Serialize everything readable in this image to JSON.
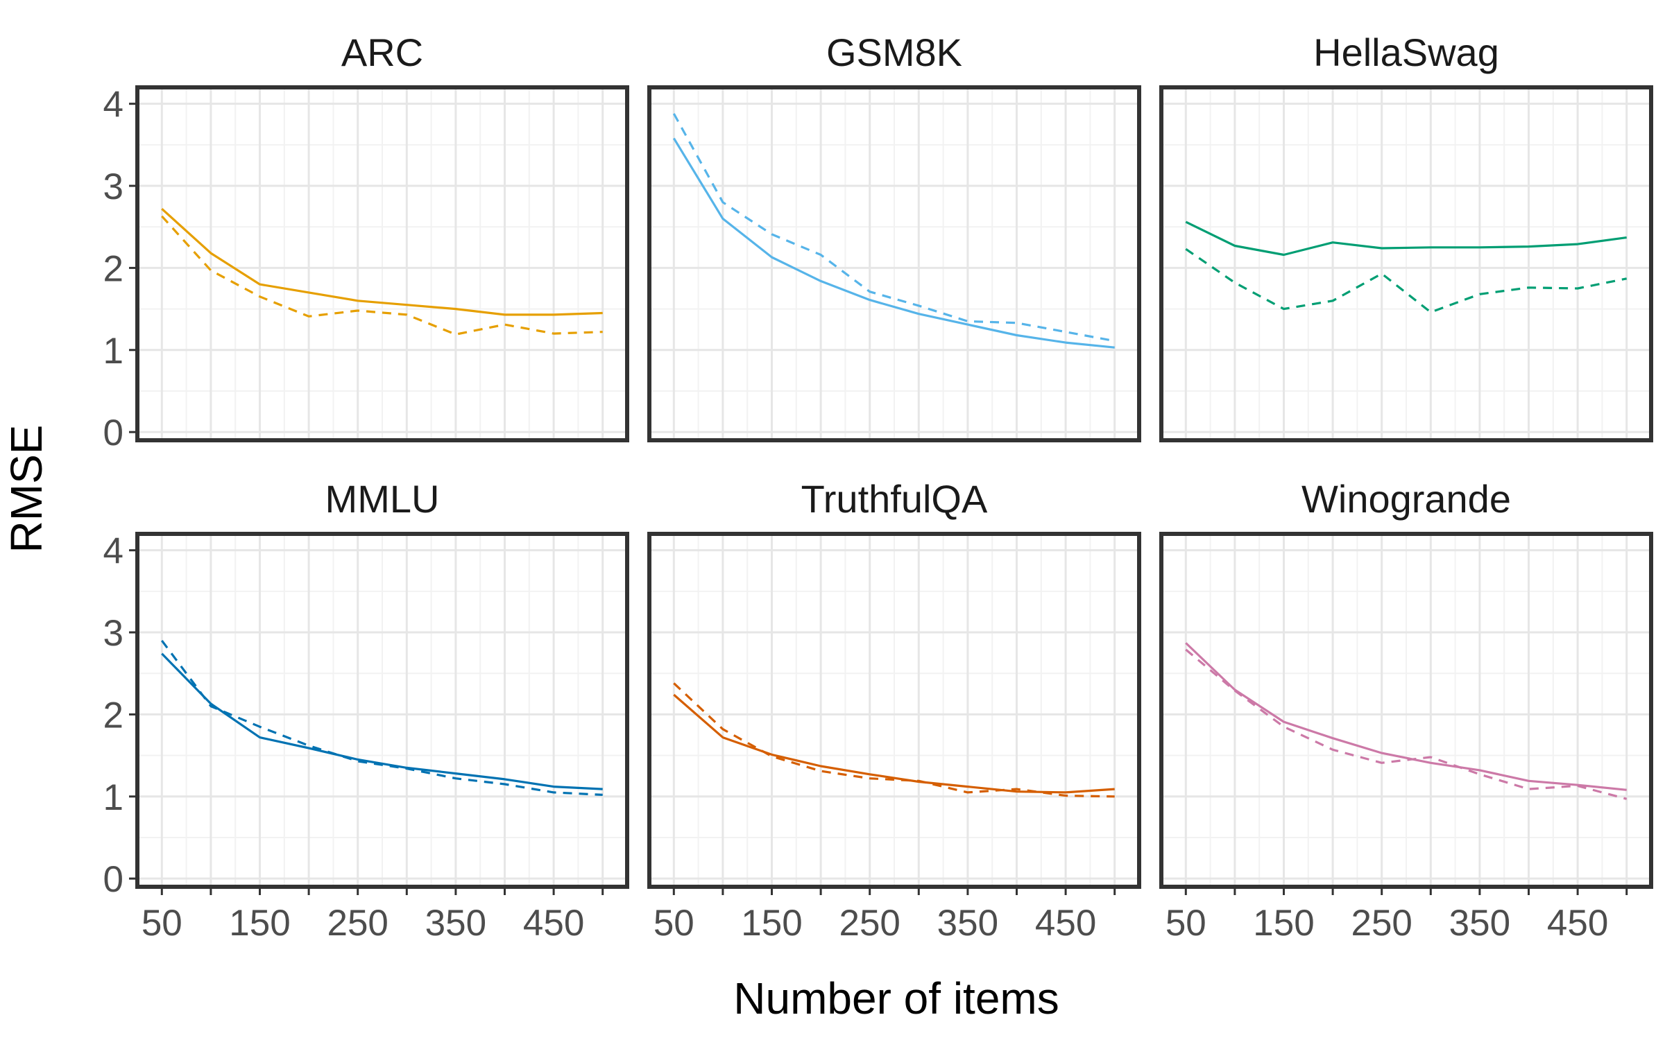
{
  "chart_data": {
    "type": "line",
    "layout": "facet-grid-2x3",
    "xlabel": "Number of items",
    "ylabel": "RMSE",
    "xlim": [
      25,
      525
    ],
    "ylim": [
      -0.1,
      4.2
    ],
    "xticks": [
      50,
      100,
      150,
      200,
      250,
      300,
      350,
      400,
      450,
      500
    ],
    "xtick_labels": [
      "50",
      "",
      "150",
      "",
      "250",
      "",
      "350",
      "",
      "450",
      ""
    ],
    "yticks": [
      0,
      1,
      2,
      3,
      4
    ],
    "ytick_labels": [
      "0",
      "1",
      "2",
      "3",
      "4"
    ],
    "grid": true,
    "line_styles": [
      "solid",
      "dashed"
    ],
    "panels": [
      {
        "title": "ARC",
        "color": "#E69F00",
        "x": [
          50,
          100,
          150,
          200,
          250,
          300,
          350,
          400,
          450,
          500
        ],
        "series": [
          {
            "style": "solid",
            "values": [
              2.72,
              2.18,
              1.8,
              1.7,
              1.6,
              1.55,
              1.5,
              1.43,
              1.43,
              1.45
            ]
          },
          {
            "style": "dashed",
            "values": [
              2.63,
              1.97,
              1.65,
              1.41,
              1.48,
              1.43,
              1.19,
              1.31,
              1.2,
              1.22
            ]
          }
        ]
      },
      {
        "title": "GSM8K",
        "color": "#56B4E9",
        "x": [
          50,
          100,
          150,
          200,
          250,
          300,
          350,
          400,
          450,
          500
        ],
        "series": [
          {
            "style": "solid",
            "values": [
              3.58,
              2.6,
              2.13,
              1.84,
              1.61,
              1.44,
              1.31,
              1.18,
              1.09,
              1.03
            ]
          },
          {
            "style": "dashed",
            "values": [
              3.88,
              2.8,
              2.41,
              2.16,
              1.71,
              1.54,
              1.35,
              1.33,
              1.22,
              1.11
            ]
          }
        ]
      },
      {
        "title": "HellaSwag",
        "color": "#009E73",
        "x": [
          50,
          100,
          150,
          200,
          250,
          300,
          350,
          400,
          450,
          500
        ],
        "series": [
          {
            "style": "solid",
            "values": [
              2.56,
              2.27,
              2.16,
              2.31,
              2.24,
              2.25,
              2.25,
              2.26,
              2.29,
              2.37
            ]
          },
          {
            "style": "dashed",
            "values": [
              2.23,
              1.82,
              1.5,
              1.6,
              1.93,
              1.46,
              1.68,
              1.76,
              1.75,
              1.87
            ]
          }
        ]
      },
      {
        "title": "MMLU",
        "color": "#0072B2",
        "x": [
          50,
          100,
          150,
          200,
          250,
          300,
          350,
          400,
          450,
          500
        ],
        "series": [
          {
            "style": "solid",
            "values": [
              2.74,
              2.13,
              1.72,
              1.59,
              1.45,
              1.35,
              1.28,
              1.21,
              1.12,
              1.09
            ]
          },
          {
            "style": "dashed",
            "values": [
              2.9,
              2.1,
              1.85,
              1.62,
              1.43,
              1.34,
              1.22,
              1.15,
              1.05,
              1.02
            ]
          }
        ]
      },
      {
        "title": "TruthfulQA",
        "color": "#D55E00",
        "x": [
          50,
          100,
          150,
          200,
          250,
          300,
          350,
          400,
          450,
          500
        ],
        "series": [
          {
            "style": "solid",
            "values": [
              2.24,
              1.72,
              1.51,
              1.37,
              1.27,
              1.18,
              1.12,
              1.06,
              1.05,
              1.09
            ]
          },
          {
            "style": "dashed",
            "values": [
              2.38,
              1.82,
              1.49,
              1.31,
              1.22,
              1.19,
              1.05,
              1.09,
              1.01,
              1.0
            ]
          }
        ]
      },
      {
        "title": "Winogrande",
        "color": "#CC79A7",
        "x": [
          50,
          100,
          150,
          200,
          250,
          300,
          350,
          400,
          450,
          500
        ],
        "series": [
          {
            "style": "solid",
            "values": [
              2.87,
              2.3,
              1.91,
              1.71,
              1.53,
              1.41,
              1.32,
              1.19,
              1.14,
              1.08
            ]
          },
          {
            "style": "dashed",
            "values": [
              2.79,
              2.29,
              1.85,
              1.57,
              1.41,
              1.48,
              1.27,
              1.09,
              1.13,
              0.97
            ]
          }
        ]
      }
    ]
  }
}
